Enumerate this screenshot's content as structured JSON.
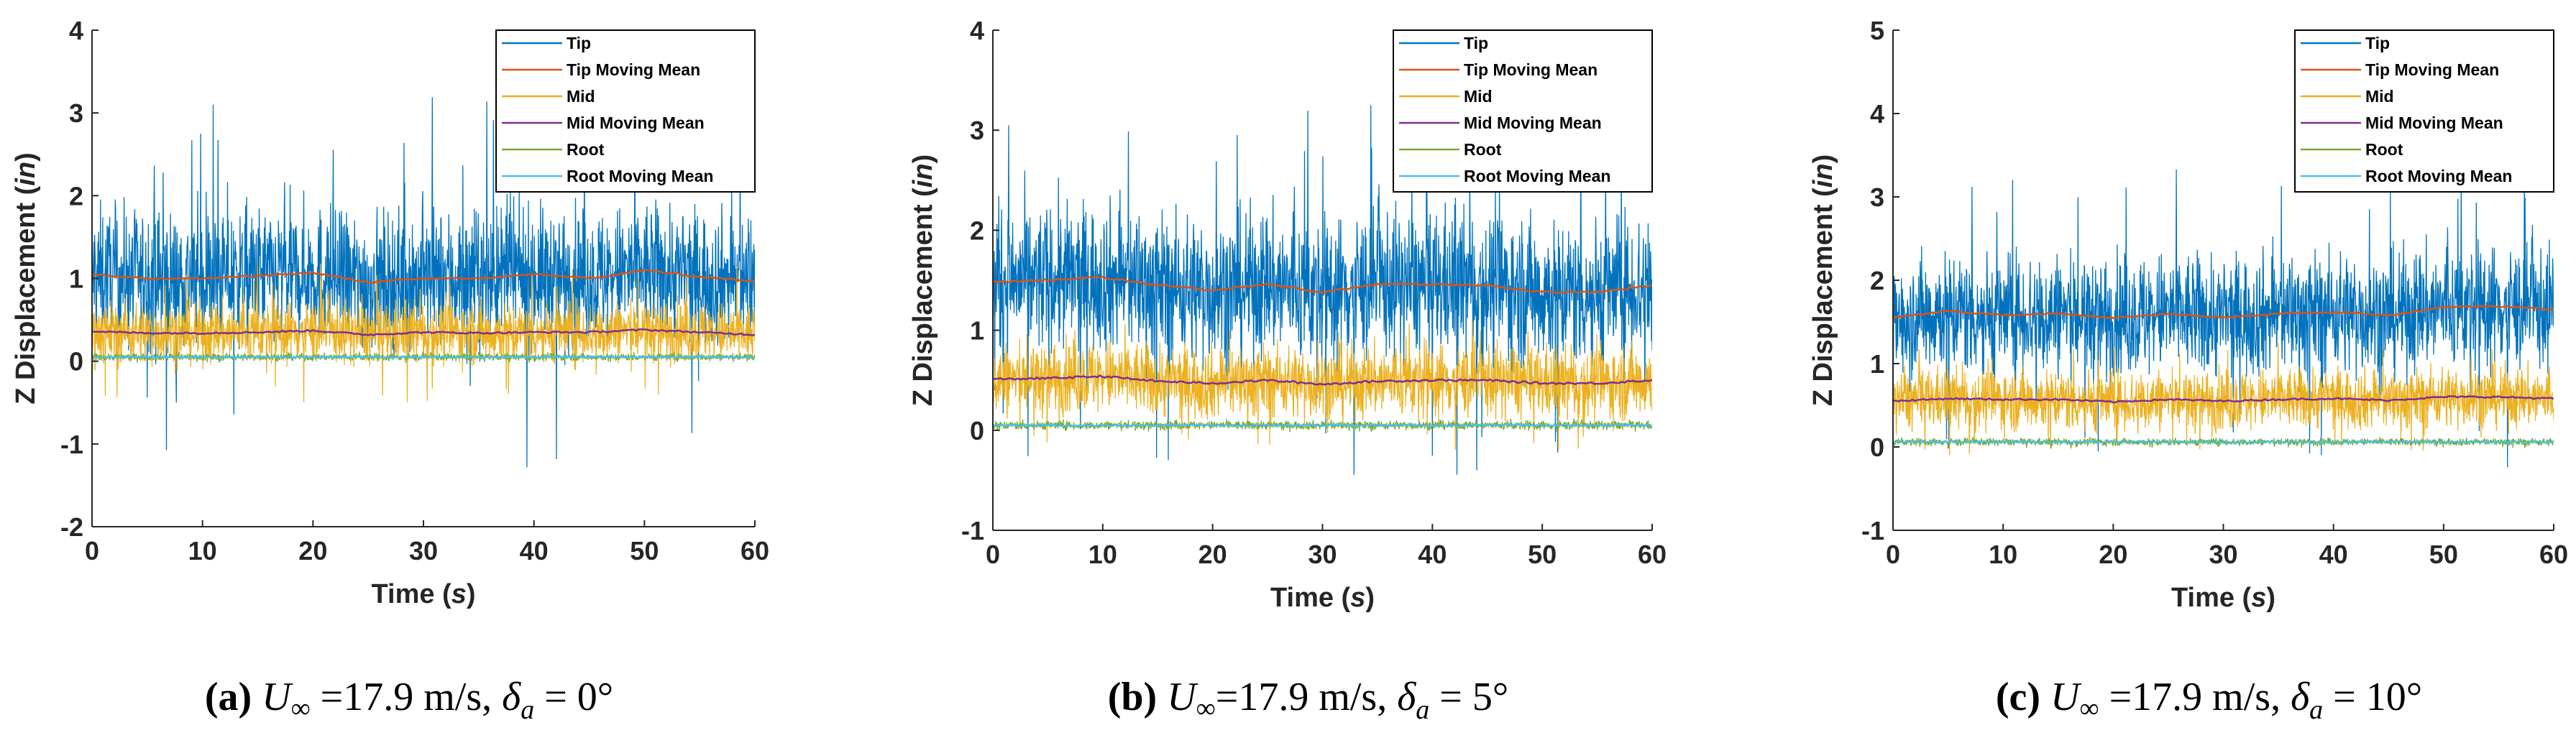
{
  "colors": {
    "Tip": "#0072BD",
    "Tip Moving Mean": "#D95319",
    "Mid": "#EDB120",
    "Mid Moving Mean": "#7E2F8E",
    "Root": "#77AC30",
    "Root Moving Mean": "#4DBEEE",
    "axis": "#262626"
  },
  "chart_data": [
    {
      "type": "line",
      "id": "a",
      "caption": {
        "label": "(a)",
        "lhs": "U",
        "sub": "∞",
        "speed": " =17.9 m/s, ",
        "delta": "δ",
        "delta_sub": "a",
        "eq": " = ",
        "angle": "0°"
      },
      "xlabel": "Time (",
      "xlabel_var": "s",
      "xlabel_end": ")",
      "ylabel": "Z Displacement (",
      "ylabel_var": "in",
      "ylabel_end": ")",
      "xlim": [
        0,
        60
      ],
      "ylim": [
        -2,
        4
      ],
      "xticks": [
        0,
        10,
        20,
        30,
        40,
        50,
        60
      ],
      "yticks": [
        -2,
        -1,
        0,
        1,
        2,
        3,
        4
      ],
      "legend": [
        "Tip",
        "Tip Moving Mean",
        "Mid",
        "Mid Moving Mean",
        "Root",
        "Root Moving Mean"
      ],
      "legend_position": "top-right",
      "moving_mean_t": [
        0,
        5,
        10,
        15,
        20,
        25,
        30,
        35,
        40,
        45,
        50,
        55,
        60
      ],
      "series": [
        {
          "name": "Tip",
          "mean": 1.05,
          "spread": 0.55,
          "max": 3.3,
          "min": -1.45
        },
        {
          "name": "Tip Moving Mean",
          "values": [
            1.05,
            1.0,
            1.0,
            1.03,
            1.07,
            0.95,
            1.0,
            1.0,
            1.05,
            1.0,
            1.1,
            1.02,
            0.97
          ]
        },
        {
          "name": "Mid",
          "mean": 0.35,
          "spread": 0.25,
          "max": 1.2,
          "min": -0.5
        },
        {
          "name": "Mid Moving Mean",
          "values": [
            0.36,
            0.34,
            0.34,
            0.35,
            0.37,
            0.32,
            0.35,
            0.34,
            0.35,
            0.35,
            0.38,
            0.35,
            0.32
          ]
        },
        {
          "name": "Root",
          "mean": 0.05,
          "spread": 0.03,
          "max": 0.12,
          "min": -0.02
        },
        {
          "name": "Root Moving Mean",
          "values": [
            0.05,
            0.05,
            0.05,
            0.05,
            0.05,
            0.05,
            0.05,
            0.05,
            0.05,
            0.05,
            0.05,
            0.05,
            0.05
          ]
        }
      ]
    },
    {
      "type": "line",
      "id": "b",
      "caption": {
        "label": "(b)",
        "lhs": "U",
        "sub": "∞",
        "speed": "=17.9 m/s, ",
        "delta": "δ",
        "delta_sub": "a",
        "eq": " = ",
        "angle": "5°"
      },
      "xlabel": "Time (",
      "xlabel_var": "s",
      "xlabel_end": ")",
      "ylabel": "Z Displacement (",
      "ylabel_var": "in",
      "ylabel_end": ")",
      "xlim": [
        0,
        60
      ],
      "ylim": [
        -1,
        4
      ],
      "xticks": [
        0,
        10,
        20,
        30,
        40,
        50,
        60
      ],
      "yticks": [
        -1,
        0,
        1,
        2,
        3,
        4
      ],
      "legend": [
        "Tip",
        "Tip Moving Mean",
        "Mid",
        "Mid Moving Mean",
        "Root",
        "Root Moving Mean"
      ],
      "legend_position": "top-right",
      "moving_mean_t": [
        0,
        5,
        10,
        15,
        20,
        25,
        30,
        35,
        40,
        45,
        50,
        55,
        60
      ],
      "series": [
        {
          "name": "Tip",
          "mean": 1.45,
          "spread": 0.5,
          "max": 3.3,
          "min": -0.45
        },
        {
          "name": "Tip Moving Mean",
          "values": [
            1.48,
            1.5,
            1.53,
            1.45,
            1.4,
            1.46,
            1.38,
            1.46,
            1.46,
            1.45,
            1.38,
            1.38,
            1.45
          ]
        },
        {
          "name": "Mid",
          "mean": 0.5,
          "spread": 0.25,
          "max": 1.1,
          "min": -0.2
        },
        {
          "name": "Mid Moving Mean",
          "values": [
            0.51,
            0.52,
            0.54,
            0.49,
            0.47,
            0.5,
            0.46,
            0.49,
            0.5,
            0.5,
            0.47,
            0.47,
            0.5
          ]
        },
        {
          "name": "Root",
          "mean": 0.05,
          "spread": 0.03,
          "max": 0.12,
          "min": -0.02
        },
        {
          "name": "Root Moving Mean",
          "values": [
            0.05,
            0.05,
            0.05,
            0.05,
            0.05,
            0.05,
            0.05,
            0.05,
            0.05,
            0.05,
            0.05,
            0.05,
            0.05
          ]
        }
      ]
    },
    {
      "type": "line",
      "id": "c",
      "caption": {
        "label": "(c)",
        "lhs": "U",
        "sub": "∞",
        "speed": " =17.9 m/s, ",
        "delta": "δ",
        "delta_sub": "a",
        "eq": " = ",
        "angle": "10°"
      },
      "xlabel": "Time (",
      "xlabel_var": "s",
      "xlabel_end": ")",
      "ylabel": "Z Displacement (",
      "ylabel_var": "in",
      "ylabel_end": ")",
      "xlim": [
        0,
        60
      ],
      "ylim": [
        -1,
        5
      ],
      "xticks": [
        0,
        10,
        20,
        30,
        40,
        50,
        60
      ],
      "yticks": [
        -1,
        0,
        1,
        2,
        3,
        4,
        5
      ],
      "legend": [
        "Tip",
        "Tip Moving Mean",
        "Mid",
        "Mid Moving Mean",
        "Root",
        "Root Moving Mean"
      ],
      "legend_position": "top-right",
      "moving_mean_t": [
        0,
        5,
        10,
        15,
        20,
        25,
        30,
        35,
        40,
        45,
        50,
        55,
        60
      ],
      "series": [
        {
          "name": "Tip",
          "mean": 1.6,
          "spread": 0.5,
          "max": 3.45,
          "min": -0.25
        },
        {
          "name": "Tip Moving Mean",
          "values": [
            1.55,
            1.63,
            1.58,
            1.6,
            1.55,
            1.6,
            1.55,
            1.6,
            1.62,
            1.58,
            1.68,
            1.69,
            1.65
          ]
        },
        {
          "name": "Mid",
          "mean": 0.57,
          "spread": 0.25,
          "max": 1.3,
          "min": -0.1
        },
        {
          "name": "Mid Moving Mean",
          "values": [
            0.55,
            0.58,
            0.57,
            0.57,
            0.54,
            0.57,
            0.55,
            0.57,
            0.58,
            0.56,
            0.6,
            0.6,
            0.58
          ]
        },
        {
          "name": "Root",
          "mean": 0.05,
          "spread": 0.03,
          "max": 0.12,
          "min": -0.02
        },
        {
          "name": "Root Moving Mean",
          "values": [
            0.06,
            0.06,
            0.06,
            0.06,
            0.06,
            0.06,
            0.06,
            0.06,
            0.06,
            0.06,
            0.06,
            0.06,
            0.06
          ]
        }
      ]
    }
  ]
}
